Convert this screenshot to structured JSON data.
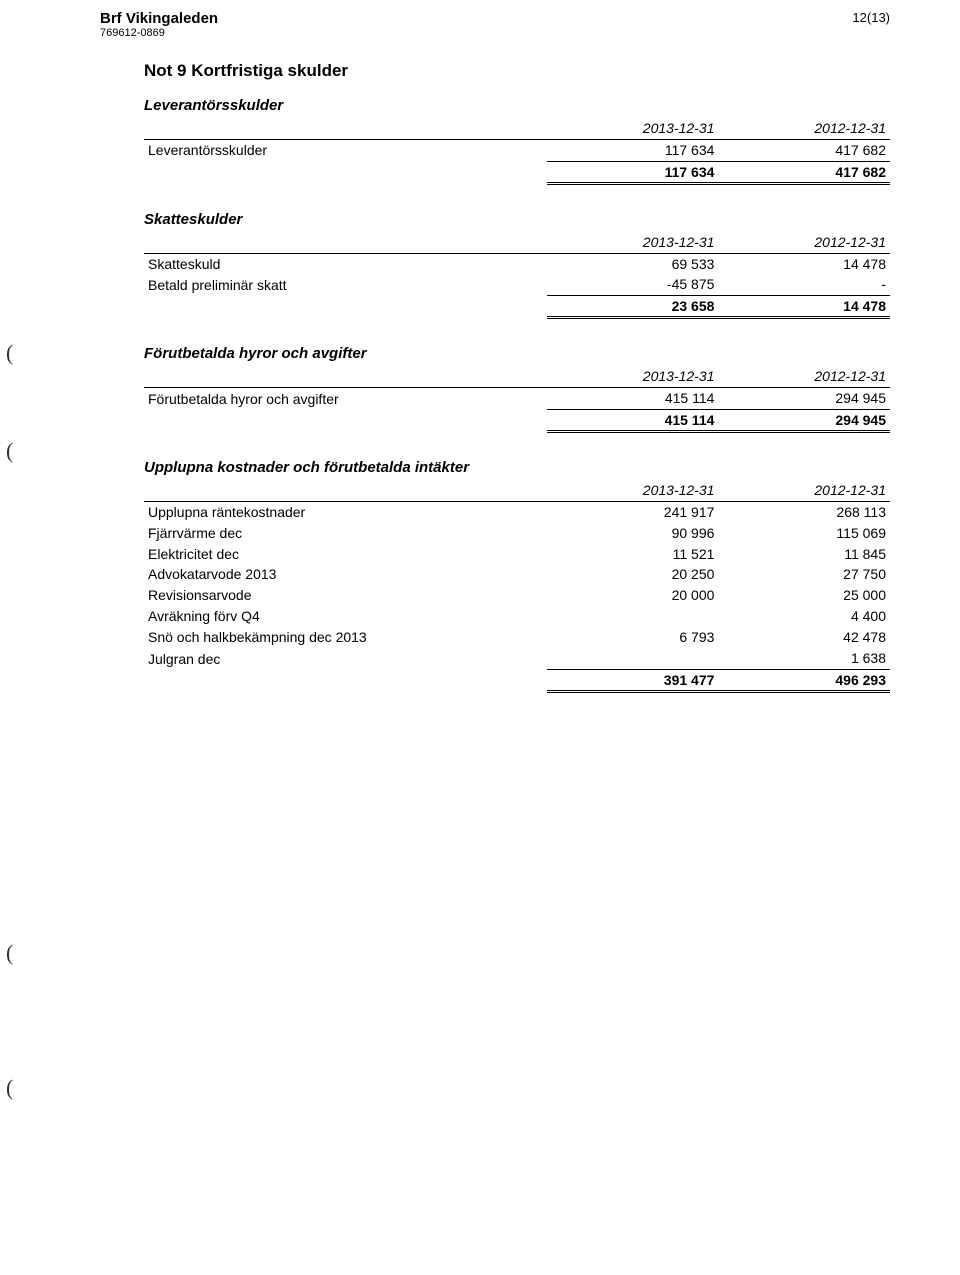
{
  "header": {
    "org_name": "Brf Vikingaleden",
    "org_id": "769612-0869",
    "page_num": "12(13)"
  },
  "note_title": "Not 9  Kortfristiga skulder",
  "sections": [
    {
      "title": "Leverantörsskulder",
      "col1": "2013-12-31",
      "col2": "2012-12-31",
      "rows": [
        {
          "label": "Leverantörsskulder",
          "c1": "117 634",
          "c2": "417 682",
          "topline": true
        }
      ],
      "total": {
        "c1": "117 634",
        "c2": "417 682"
      }
    },
    {
      "title": "Skatteskulder",
      "col1": "2013-12-31",
      "col2": "2012-12-31",
      "rows": [
        {
          "label": "Skatteskuld",
          "c1": "69 533",
          "c2": "14 478",
          "topline": true
        },
        {
          "label": "Betald preliminär skatt",
          "c1": "-45 875",
          "c2": "-"
        }
      ],
      "total": {
        "c1": "23 658",
        "c2": "14 478"
      }
    },
    {
      "title": "Förutbetalda hyror och avgifter",
      "col1": "2013-12-31",
      "col2": "2012-12-31",
      "rows": [
        {
          "label": "Förutbetalda hyror och avgifter",
          "c1": "415 114",
          "c2": "294 945",
          "topline": true
        }
      ],
      "total": {
        "c1": "415 114",
        "c2": "294 945"
      }
    },
    {
      "title": "Upplupna kostnader och förutbetalda intäkter",
      "col1": "2013-12-31",
      "col2": "2012-12-31",
      "rows": [
        {
          "label": "Upplupna räntekostnader",
          "c1": "241 917",
          "c2": "268 113",
          "topline": true
        },
        {
          "label": "Fjärrvärme dec",
          "c1": "90 996",
          "c2": "115 069"
        },
        {
          "label": "Elektricitet dec",
          "c1": "11 521",
          "c2": "11 845"
        },
        {
          "label": "Advokatarvode 2013",
          "c1": "20 250",
          "c2": "27 750"
        },
        {
          "label": "Revisionsarvode",
          "c1": "20 000",
          "c2": "25 000"
        },
        {
          "label": "Avräkning förv Q4",
          "c1": "",
          "c2": "4 400"
        },
        {
          "label": "Snö och halkbekämpning dec 2013",
          "c1": "6 793",
          "c2": "42 478"
        },
        {
          "label": "Julgran dec",
          "c1": "",
          "c2": "1 638"
        }
      ],
      "total": {
        "c1": "391 477",
        "c2": "496 293"
      }
    }
  ]
}
